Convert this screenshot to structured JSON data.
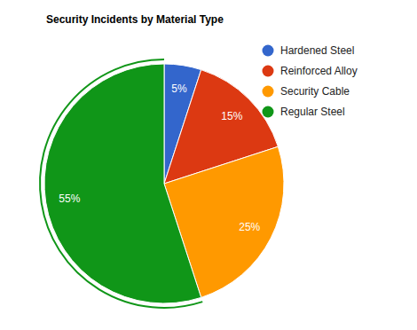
{
  "chart_data": {
    "type": "pie",
    "title": "Security Incidents by Material Type",
    "categories": [
      "Hardened Steel",
      "Reinforced Alloy",
      "Security Cable",
      "Regular Steel"
    ],
    "values": [
      5,
      15,
      25,
      55
    ],
    "value_labels": [
      "5%",
      "15%",
      "25%",
      "55%"
    ],
    "colors": [
      "#3366cc",
      "#dc3912",
      "#ff9900",
      "#109618"
    ],
    "data_labels": true,
    "legend": "top-right"
  }
}
